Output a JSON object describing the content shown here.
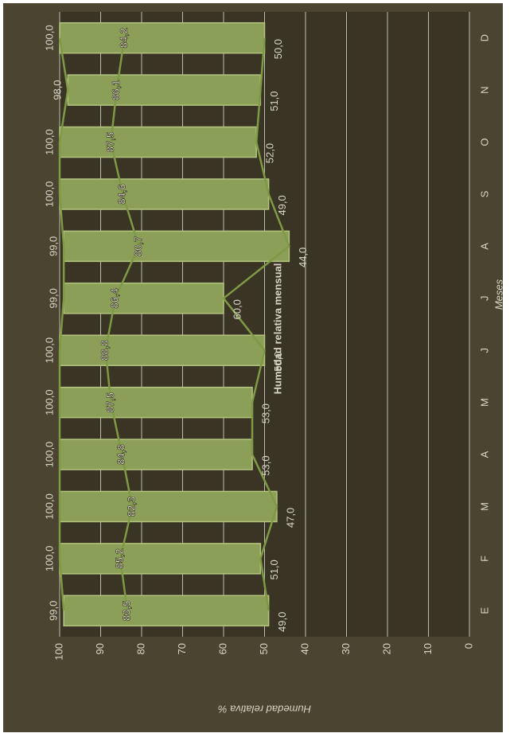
{
  "chart_data": {
    "type": "range_bar",
    "title": "Humedad relativa mensual",
    "x_label": "Meses",
    "y_label": "Humedad relativa %",
    "rotate": -90,
    "categories": [
      "E",
      "F",
      "M",
      "A",
      "M",
      "J",
      "J",
      "A",
      "S",
      "O",
      "N",
      "D"
    ],
    "bar_color": "#8c9f58",
    "series": [
      {
        "color": "#7f9a45",
        "values": [
          99,
          100,
          100,
          100,
          100,
          100,
          99,
          99,
          100,
          100,
          98,
          100
        ],
        "value_labels": [
          "99,0",
          "100,0",
          "100,0",
          "100,0",
          "100,0",
          "100,0",
          "99,0",
          "99,0",
          "100,0",
          "100,0",
          "98,0",
          "100,0"
        ]
      },
      {
        "color": "#7f9a45",
        "values": [
          83.5,
          85.2,
          82.3,
          84.8,
          87.5,
          88.8,
          86.4,
          80.7,
          84.6,
          87.5,
          86.1,
          84.2
        ],
        "value_labels": [
          "83,5",
          "85,2",
          "82,3",
          "84,8",
          "87,5",
          "88,8",
          "86,4",
          "80,7",
          "84,6",
          "87,5",
          "86,1",
          "84,2"
        ]
      },
      {
        "color": "#7f9a45",
        "values": [
          49,
          51,
          47,
          53,
          53,
          50,
          60,
          44,
          49,
          52,
          51,
          50
        ],
        "value_labels": [
          "49,0",
          "51,0",
          "47,0",
          "53,0",
          "53,0",
          "50,0",
          "60,0",
          "44,0",
          "49,0",
          "52,0",
          "51,0",
          "50,0"
        ]
      }
    ],
    "ylim": [
      0,
      100
    ],
    "yticks": [
      0,
      10,
      20,
      30,
      40,
      50,
      60,
      70,
      80,
      90,
      100
    ],
    "grid": true
  }
}
